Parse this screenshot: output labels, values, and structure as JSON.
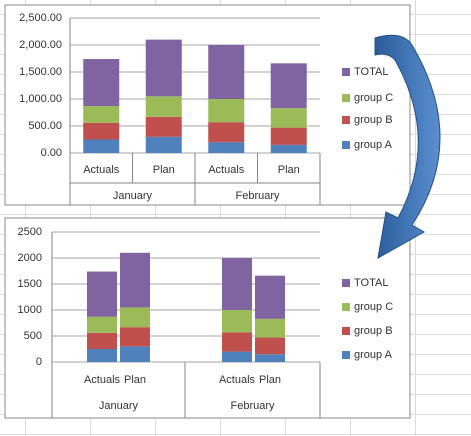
{
  "chart_data": [
    {
      "type": "bar",
      "stacked": true,
      "categories": [
        "Actuals",
        "Plan",
        "Actuals",
        "Plan"
      ],
      "groups": [
        "January",
        "February"
      ],
      "series": [
        {
          "name": "group A",
          "color": "#4f81bd",
          "values": [
            250,
            300,
            200,
            150
          ]
        },
        {
          "name": "group B",
          "color": "#c0504d",
          "values": [
            310,
            370,
            370,
            320
          ]
        },
        {
          "name": "group C",
          "color": "#9bbb59",
          "values": [
            310,
            380,
            430,
            360
          ]
        },
        {
          "name": "TOTAL",
          "color": "#8064a2",
          "values": [
            870,
            1050,
            1000,
            830
          ]
        }
      ],
      "ylim": [
        0,
        2500
      ],
      "yticks": [
        {
          "value": 0,
          "label": "0.00"
        },
        {
          "value": 500,
          "label": "500.00"
        },
        {
          "value": 1000,
          "label": "1,000.00"
        },
        {
          "value": 1500,
          "label": "1,500.00"
        },
        {
          "value": 2000,
          "label": "2,000.00"
        },
        {
          "value": 2500,
          "label": "2,500.00"
        }
      ],
      "grid": true,
      "legend": "right"
    },
    {
      "type": "bar",
      "stacked": true,
      "categories": [
        "Actuals",
        "Plan",
        "Actuals",
        "Plan"
      ],
      "groups": [
        "January",
        "February"
      ],
      "series": [
        {
          "name": "group A",
          "color": "#4f81bd",
          "values": [
            250,
            300,
            200,
            150
          ]
        },
        {
          "name": "group B",
          "color": "#c0504d",
          "values": [
            310,
            370,
            370,
            320
          ]
        },
        {
          "name": "group C",
          "color": "#9bbb59",
          "values": [
            310,
            380,
            430,
            360
          ]
        },
        {
          "name": "TOTAL",
          "color": "#8064a2",
          "values": [
            870,
            1050,
            1000,
            830
          ]
        }
      ],
      "ylim": [
        0,
        2500
      ],
      "yticks": [
        0,
        500,
        1000,
        1500,
        2000,
        2500
      ],
      "grid": true,
      "legend": "right"
    }
  ]
}
